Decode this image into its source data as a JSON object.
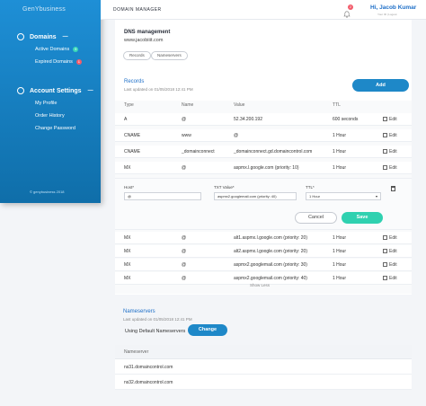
{
  "sidebar": {
    "logo": "GenYbusiness",
    "domains_label": "Domains",
    "items_domains": [
      {
        "label": "Active Domains",
        "badge": "9",
        "badge_color": "#39d6b8"
      },
      {
        "label": "Expired Domains",
        "badge": "1",
        "badge_color": "#f25c6b"
      }
    ],
    "account_label": "Account Settings",
    "items_account": [
      {
        "label": "My Profile"
      },
      {
        "label": "Order History"
      },
      {
        "label": "Change Password"
      }
    ],
    "footer": "© genybusiness 2018"
  },
  "header": {
    "title": "DOMAIN MANAGER",
    "notification_count": "2",
    "user_name": "Hi, Jacob Kumar",
    "user_sub": "Your ID | Logout"
  },
  "dns": {
    "title": "DNS management",
    "domain": "www.jacobiiit.com",
    "tabs": [
      "Records",
      "Nameservers"
    ]
  },
  "records": {
    "title": "Records",
    "updated": "Last updated on 01/05/2018 12:41 PM",
    "add_label": "Add",
    "columns": [
      "Type",
      "Name",
      "Value",
      "TTL"
    ],
    "rows_top": [
      {
        "type": "A",
        "name": "@",
        "value": "52.34.200.192",
        "ttl": "600 seconds"
      },
      {
        "type": "CNAME",
        "name": "www",
        "value": "@",
        "ttl": "1 Hour"
      },
      {
        "type": "CNAME",
        "name": "_domainconnect",
        "value": "_domainconnect.gd.domaincontrol.com",
        "ttl": "1 Hour"
      },
      {
        "type": "MX",
        "name": "@",
        "value": "aspmx.l.google.com (priority: 10)",
        "ttl": "1 Hour"
      }
    ],
    "rows_bottom": [
      {
        "type": "MX",
        "name": "@",
        "value": "alt1.aspmx.l.google.com (priority: 20)",
        "ttl": "1 Hour"
      },
      {
        "type": "MX",
        "name": "@",
        "value": "alt2.aspmx.l.google.com (priority: 20)",
        "ttl": "1 Hour"
      },
      {
        "type": "MX",
        "name": "@",
        "value": "aspmx2.googlemail.com (priority: 30)",
        "ttl": "1 Hour"
      },
      {
        "type": "MX",
        "name": "@",
        "value": "aspmx2.googlemail.com (priority: 40)",
        "ttl": "1 Hour"
      }
    ],
    "edit_label": "Edit",
    "show_less": "Show Less",
    "form": {
      "host_label": "Host*",
      "host_value": "@",
      "txt_label": "TXT Value*",
      "txt_value": "aspmx2.googlemail.com (priority: 40)",
      "ttl_label": "TTL*",
      "ttl_value": "1 Hour",
      "cancel_label": "Cancel",
      "save_label": "Save"
    }
  },
  "nameservers": {
    "title": "Nameservers",
    "updated": "Last updated on 01/05/2018 12:41 PM",
    "using": "Using Default Nameservers",
    "change_label": "Change",
    "column": "Nameserver",
    "rows": [
      "ns31.domaincontrol.com",
      "ns32.domaincontrol.com"
    ]
  },
  "colors": {
    "sidebar": "#1e8fd6",
    "accent": "#1e88c8",
    "save": "#2fd1b0"
  }
}
